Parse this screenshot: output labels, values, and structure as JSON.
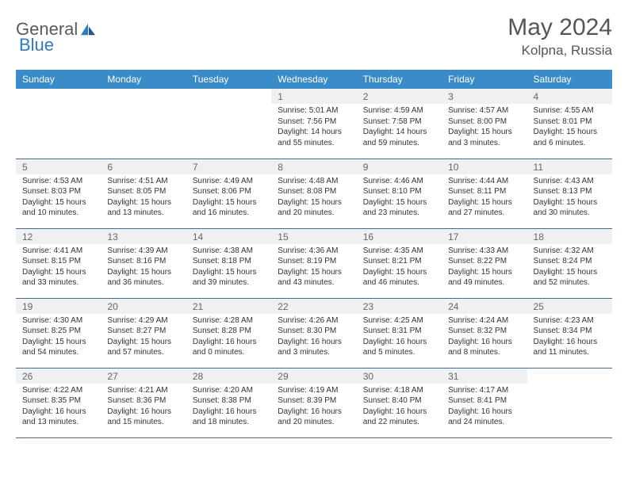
{
  "brand": {
    "name_part1": "General",
    "name_part2": "Blue"
  },
  "title": "May 2024",
  "location": "Kolpna, Russia",
  "header_bg": "#3a8cc9",
  "daynum_bg": "#eef0f2",
  "border_color": "#4a6a8a",
  "weekdays": [
    "Sunday",
    "Monday",
    "Tuesday",
    "Wednesday",
    "Thursday",
    "Friday",
    "Saturday"
  ],
  "weeks": [
    [
      {
        "n": "",
        "sr": "",
        "ss": "",
        "dl": ""
      },
      {
        "n": "",
        "sr": "",
        "ss": "",
        "dl": ""
      },
      {
        "n": "",
        "sr": "",
        "ss": "",
        "dl": ""
      },
      {
        "n": "1",
        "sr": "Sunrise: 5:01 AM",
        "ss": "Sunset: 7:56 PM",
        "dl": "Daylight: 14 hours and 55 minutes."
      },
      {
        "n": "2",
        "sr": "Sunrise: 4:59 AM",
        "ss": "Sunset: 7:58 PM",
        "dl": "Daylight: 14 hours and 59 minutes."
      },
      {
        "n": "3",
        "sr": "Sunrise: 4:57 AM",
        "ss": "Sunset: 8:00 PM",
        "dl": "Daylight: 15 hours and 3 minutes."
      },
      {
        "n": "4",
        "sr": "Sunrise: 4:55 AM",
        "ss": "Sunset: 8:01 PM",
        "dl": "Daylight: 15 hours and 6 minutes."
      }
    ],
    [
      {
        "n": "5",
        "sr": "Sunrise: 4:53 AM",
        "ss": "Sunset: 8:03 PM",
        "dl": "Daylight: 15 hours and 10 minutes."
      },
      {
        "n": "6",
        "sr": "Sunrise: 4:51 AM",
        "ss": "Sunset: 8:05 PM",
        "dl": "Daylight: 15 hours and 13 minutes."
      },
      {
        "n": "7",
        "sr": "Sunrise: 4:49 AM",
        "ss": "Sunset: 8:06 PM",
        "dl": "Daylight: 15 hours and 16 minutes."
      },
      {
        "n": "8",
        "sr": "Sunrise: 4:48 AM",
        "ss": "Sunset: 8:08 PM",
        "dl": "Daylight: 15 hours and 20 minutes."
      },
      {
        "n": "9",
        "sr": "Sunrise: 4:46 AM",
        "ss": "Sunset: 8:10 PM",
        "dl": "Daylight: 15 hours and 23 minutes."
      },
      {
        "n": "10",
        "sr": "Sunrise: 4:44 AM",
        "ss": "Sunset: 8:11 PM",
        "dl": "Daylight: 15 hours and 27 minutes."
      },
      {
        "n": "11",
        "sr": "Sunrise: 4:43 AM",
        "ss": "Sunset: 8:13 PM",
        "dl": "Daylight: 15 hours and 30 minutes."
      }
    ],
    [
      {
        "n": "12",
        "sr": "Sunrise: 4:41 AM",
        "ss": "Sunset: 8:15 PM",
        "dl": "Daylight: 15 hours and 33 minutes."
      },
      {
        "n": "13",
        "sr": "Sunrise: 4:39 AM",
        "ss": "Sunset: 8:16 PM",
        "dl": "Daylight: 15 hours and 36 minutes."
      },
      {
        "n": "14",
        "sr": "Sunrise: 4:38 AM",
        "ss": "Sunset: 8:18 PM",
        "dl": "Daylight: 15 hours and 39 minutes."
      },
      {
        "n": "15",
        "sr": "Sunrise: 4:36 AM",
        "ss": "Sunset: 8:19 PM",
        "dl": "Daylight: 15 hours and 43 minutes."
      },
      {
        "n": "16",
        "sr": "Sunrise: 4:35 AM",
        "ss": "Sunset: 8:21 PM",
        "dl": "Daylight: 15 hours and 46 minutes."
      },
      {
        "n": "17",
        "sr": "Sunrise: 4:33 AM",
        "ss": "Sunset: 8:22 PM",
        "dl": "Daylight: 15 hours and 49 minutes."
      },
      {
        "n": "18",
        "sr": "Sunrise: 4:32 AM",
        "ss": "Sunset: 8:24 PM",
        "dl": "Daylight: 15 hours and 52 minutes."
      }
    ],
    [
      {
        "n": "19",
        "sr": "Sunrise: 4:30 AM",
        "ss": "Sunset: 8:25 PM",
        "dl": "Daylight: 15 hours and 54 minutes."
      },
      {
        "n": "20",
        "sr": "Sunrise: 4:29 AM",
        "ss": "Sunset: 8:27 PM",
        "dl": "Daylight: 15 hours and 57 minutes."
      },
      {
        "n": "21",
        "sr": "Sunrise: 4:28 AM",
        "ss": "Sunset: 8:28 PM",
        "dl": "Daylight: 16 hours and 0 minutes."
      },
      {
        "n": "22",
        "sr": "Sunrise: 4:26 AM",
        "ss": "Sunset: 8:30 PM",
        "dl": "Daylight: 16 hours and 3 minutes."
      },
      {
        "n": "23",
        "sr": "Sunrise: 4:25 AM",
        "ss": "Sunset: 8:31 PM",
        "dl": "Daylight: 16 hours and 5 minutes."
      },
      {
        "n": "24",
        "sr": "Sunrise: 4:24 AM",
        "ss": "Sunset: 8:32 PM",
        "dl": "Daylight: 16 hours and 8 minutes."
      },
      {
        "n": "25",
        "sr": "Sunrise: 4:23 AM",
        "ss": "Sunset: 8:34 PM",
        "dl": "Daylight: 16 hours and 11 minutes."
      }
    ],
    [
      {
        "n": "26",
        "sr": "Sunrise: 4:22 AM",
        "ss": "Sunset: 8:35 PM",
        "dl": "Daylight: 16 hours and 13 minutes."
      },
      {
        "n": "27",
        "sr": "Sunrise: 4:21 AM",
        "ss": "Sunset: 8:36 PM",
        "dl": "Daylight: 16 hours and 15 minutes."
      },
      {
        "n": "28",
        "sr": "Sunrise: 4:20 AM",
        "ss": "Sunset: 8:38 PM",
        "dl": "Daylight: 16 hours and 18 minutes."
      },
      {
        "n": "29",
        "sr": "Sunrise: 4:19 AM",
        "ss": "Sunset: 8:39 PM",
        "dl": "Daylight: 16 hours and 20 minutes."
      },
      {
        "n": "30",
        "sr": "Sunrise: 4:18 AM",
        "ss": "Sunset: 8:40 PM",
        "dl": "Daylight: 16 hours and 22 minutes."
      },
      {
        "n": "31",
        "sr": "Sunrise: 4:17 AM",
        "ss": "Sunset: 8:41 PM",
        "dl": "Daylight: 16 hours and 24 minutes."
      },
      {
        "n": "",
        "sr": "",
        "ss": "",
        "dl": ""
      }
    ]
  ]
}
